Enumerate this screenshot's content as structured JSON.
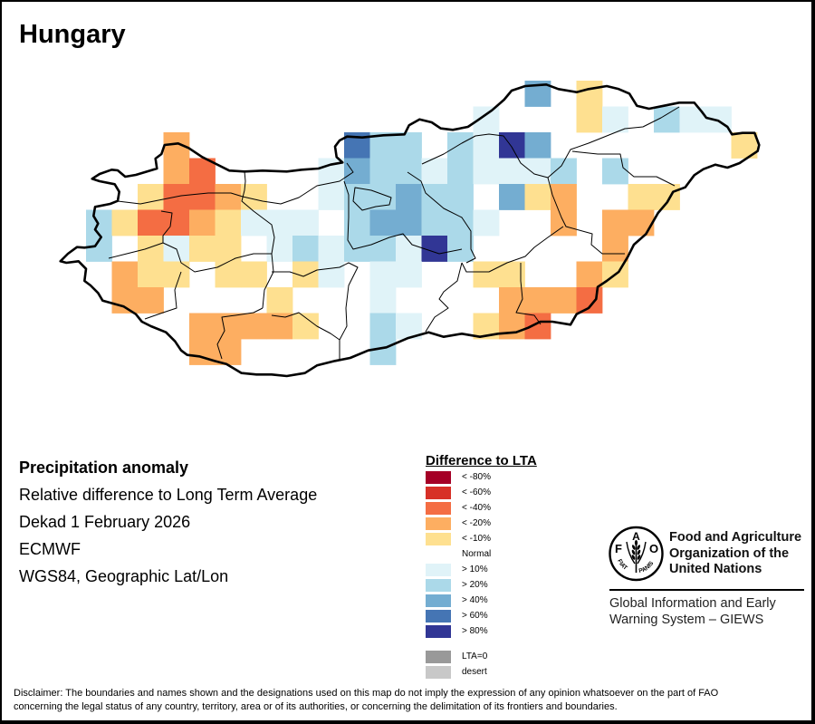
{
  "title": "Hungary",
  "info": {
    "heading": "Precipitation anomaly",
    "lines": [
      "Relative difference to Long Term Average",
      "Dekad 1 February 2026",
      "ECMWF",
      "WGS84, Geographic Lat/Lon"
    ]
  },
  "legend": {
    "title": "Difference to LTA",
    "items": [
      {
        "label": "< -80%",
        "class": -5,
        "color": "#a50026"
      },
      {
        "label": "< -60%",
        "class": -4,
        "color": "#d73027"
      },
      {
        "label": "< -40%",
        "class": -3,
        "color": "#f46d43"
      },
      {
        "label": "< -20%",
        "class": -2,
        "color": "#fdae61"
      },
      {
        "label": "< -10%",
        "class": -1,
        "color": "#fee090"
      },
      {
        "label": "Normal",
        "class": 0
      },
      {
        "label": "> 10%",
        "class": 1,
        "color": "#e0f3f8"
      },
      {
        "label": "> 20%",
        "class": 2,
        "color": "#abd9e9"
      },
      {
        "label": "> 40%",
        "class": 3,
        "color": "#74add1"
      },
      {
        "label": "> 60%",
        "class": 4,
        "color": "#4575b4"
      },
      {
        "label": "> 80%",
        "class": 5,
        "color": "#313695"
      }
    ],
    "special": [
      {
        "label": "LTA=0",
        "color": "#999999"
      },
      {
        "label": "desert",
        "color": "#c8c8c8"
      }
    ]
  },
  "organization": {
    "name_lines": [
      "Food and Agriculture",
      "Organization of the",
      "United Nations"
    ],
    "logo": {
      "letters": [
        "F",
        "A",
        "O"
      ],
      "motto": [
        "FIAT",
        "PANIS"
      ]
    },
    "system_lines": [
      "Global Information and Early",
      "Warning System – GIEWS"
    ]
  },
  "disclaimer": [
    "Disclaimer: The boundaries and names shown and the designations used on this map do not imply the expression of any opinion whatsoever on the part of FAO",
    "concerning the legal status of any country, territory, area or of its authorities, or concerning the delimitation of its frontiers and boundaries."
  ],
  "map": {
    "grid": [
      [
        0,
        0,
        0,
        0,
        0,
        0,
        0,
        0,
        0,
        0,
        0,
        0,
        0,
        0,
        0,
        0,
        0,
        3,
        0,
        -1,
        0,
        0,
        0,
        0,
        0,
        0
      ],
      [
        0,
        0,
        0,
        0,
        0,
        0,
        0,
        0,
        0,
        0,
        0,
        0,
        0,
        0,
        0,
        1,
        0,
        0,
        0,
        -1,
        1,
        0,
        2,
        1,
        1,
        0
      ],
      [
        0,
        0,
        0,
        -2,
        0,
        0,
        0,
        0,
        0,
        0,
        4,
        2,
        2,
        0,
        2,
        1,
        5,
        3,
        0,
        0,
        0,
        0,
        0,
        0,
        0,
        -1
      ],
      [
        0,
        0,
        0,
        -2,
        -3,
        0,
        0,
        0,
        0,
        1,
        3,
        2,
        2,
        1,
        2,
        1,
        1,
        1,
        2,
        0,
        2,
        0,
        0,
        0,
        0,
        0
      ],
      [
        0,
        0,
        -1,
        -3,
        -3,
        -2,
        -1,
        0,
        0,
        1,
        2,
        2,
        3,
        2,
        2,
        0,
        3,
        -1,
        -2,
        0,
        0,
        -1,
        -1,
        0,
        0,
        0
      ],
      [
        2,
        -1,
        -3,
        -3,
        -2,
        -1,
        1,
        1,
        1,
        0,
        2,
        3,
        3,
        2,
        2,
        1,
        0,
        0,
        -2,
        0,
        -2,
        -2,
        0,
        0,
        0,
        0
      ],
      [
        2,
        0,
        -1,
        1,
        -1,
        -1,
        0,
        1,
        2,
        1,
        2,
        2,
        1,
        5,
        2,
        0,
        0,
        0,
        0,
        0,
        -2,
        0,
        0,
        0,
        0,
        0
      ],
      [
        0,
        -2,
        -1,
        -1,
        0,
        -1,
        -1,
        0,
        -1,
        1,
        0,
        1,
        1,
        0,
        0,
        -1,
        -1,
        0,
        0,
        -2,
        -1,
        0,
        0,
        0,
        0,
        0
      ],
      [
        0,
        -2,
        -2,
        0,
        0,
        0,
        0,
        -1,
        0,
        0,
        0,
        1,
        0,
        0,
        0,
        0,
        -2,
        -2,
        -2,
        -3,
        0,
        0,
        0,
        0,
        0,
        0
      ],
      [
        0,
        0,
        0,
        0,
        -2,
        -2,
        -2,
        -2,
        -1,
        0,
        0,
        2,
        1,
        0,
        0,
        -1,
        -2,
        -3,
        0,
        0,
        0,
        0,
        0,
        0,
        0,
        0
      ],
      [
        0,
        0,
        0,
        0,
        -2,
        -2,
        0,
        0,
        0,
        0,
        0,
        2,
        0,
        0,
        0,
        0,
        0,
        0,
        0,
        0,
        0,
        0,
        0,
        0,
        0,
        0
      ]
    ]
  }
}
